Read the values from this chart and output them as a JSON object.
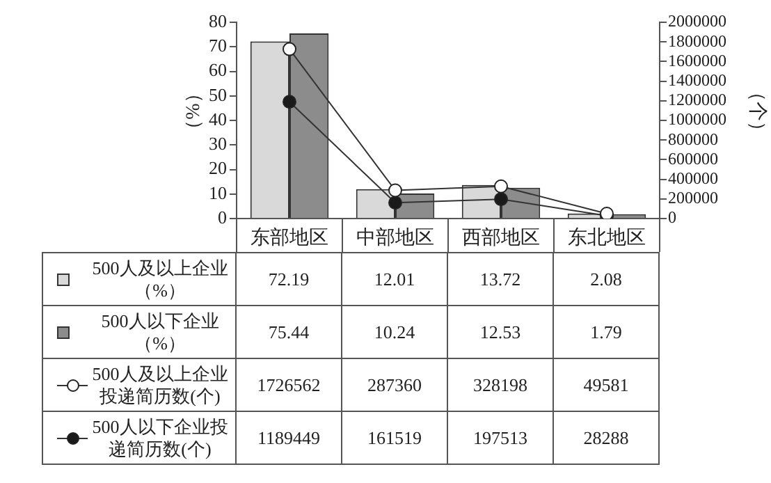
{
  "chart_data": {
    "type": "bar",
    "categories": [
      "东部地区",
      "中部地区",
      "西部地区",
      "东北地区"
    ],
    "ylabel": "（%）",
    "y2label": "（个）",
    "ylim": [
      0,
      80
    ],
    "yticks": [
      0,
      10,
      20,
      30,
      40,
      50,
      60,
      70,
      80
    ],
    "y2lim": [
      0,
      2000000
    ],
    "y2ticks": [
      0,
      200000,
      400000,
      600000,
      800000,
      1000000,
      1200000,
      1400000,
      1600000,
      1800000,
      2000000
    ],
    "marker": "circle",
    "legend": "bottom",
    "data_labels": true,
    "series": [
      {
        "name": "500人及以上企业（%）",
        "color": "#d9d9d9",
        "values": [
          72.19,
          12.01,
          13.72,
          2.08
        ]
      },
      {
        "name": "500人以下企业（%）",
        "color": "#8c8c8c",
        "values": [
          75.44,
          10.24,
          12.53,
          1.79
        ]
      },
      {
        "name": "500人及以上企业投递简历数(个)",
        "type": "line",
        "axis": "y2",
        "color": "#ffffff",
        "values": [
          1726562,
          287360,
          328198,
          49581
        ]
      },
      {
        "name": "500人以下企业投递简历数(个)",
        "type": "line",
        "axis": "y2",
        "color": "#1a1a1a",
        "values": [
          1189449,
          161519,
          197513,
          28288
        ]
      }
    ]
  }
}
